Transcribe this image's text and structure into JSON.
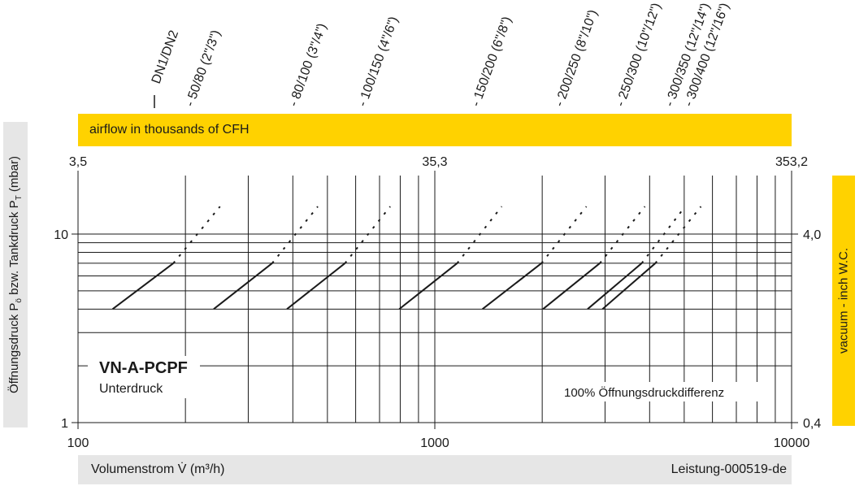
{
  "colors": {
    "accent_yellow": "#ffd200",
    "band_grey": "#e6e6e6",
    "grid": "#1a1a1a"
  },
  "chart_data": {
    "type": "line",
    "title": "VN-A-PCPF",
    "subtitle": "Unterdruck",
    "annotation": "100% Öffnungsdruckdifferenz",
    "xlabel": "Volumenstrom V̇ (m³/h)",
    "ylabel": "Öffnungsdruck Pö bzw. Tankdruck PT (mbar)",
    "ylabel_main": "Öffnungsdruck P",
    "ylabel_sub1": "ö",
    "ylabel_mid": " bzw. Tankdruck P",
    "ylabel_sub2": "T",
    "ylabel_unit": " (mbar)",
    "footer_code": "Leistung-000519-de",
    "secondary_x_label": "airflow in thousands of CFH",
    "secondary_y_label": "vacuum  - inch W.C.",
    "x_scale": "log",
    "y_scale": "log",
    "xlim": [
      100,
      10000
    ],
    "ylim": [
      1,
      20
    ],
    "x_ticks": [
      "100",
      "1000",
      "10000"
    ],
    "x_tick_values": [
      100,
      1000,
      10000
    ],
    "y_ticks": [
      "1",
      "10"
    ],
    "y_tick_values": [
      1,
      10
    ],
    "top_ticks": [
      "3,5",
      "35,3",
      "353,2"
    ],
    "top_tick_values": [
      100,
      1000,
      10000
    ],
    "right_ticks": [
      "0,4",
      "4,0"
    ],
    "right_tick_values": [
      1,
      10
    ],
    "grid": true,
    "dn_sizes": [
      "DN1/DN2",
      "50/80 (2\"/3\")",
      "80/100 (3\"/4\")",
      "100/150 (4\"/6\")",
      "150/200 (6\"/8\")",
      "200/250 (8\"/10\")",
      "250/300 (10\"/12\")",
      "300/350 (12\"/14\")",
      "300/400 (12\"/16\")"
    ],
    "series": [
      {
        "name": "50/80 (2\"/3\")",
        "x_start": 125,
        "y_start": 4,
        "x_end": 185,
        "y_end": 7,
        "x_dash_end": 250,
        "y_dash_end": 14,
        "label_x": 210
      },
      {
        "name": "80/100 (3\"/4\")",
        "x_start": 240,
        "y_start": 4,
        "x_end": 350,
        "y_end": 7,
        "x_dash_end": 470,
        "y_dash_end": 14,
        "label_x": 410
      },
      {
        "name": "100/150 (4\"/6\")",
        "x_start": 385,
        "y_start": 4,
        "x_end": 560,
        "y_end": 7,
        "x_dash_end": 750,
        "y_dash_end": 14,
        "label_x": 640
      },
      {
        "name": "150/200 (6\"/8\")",
        "x_start": 795,
        "y_start": 4,
        "x_end": 1155,
        "y_end": 7,
        "x_dash_end": 1540,
        "y_dash_end": 14,
        "label_x": 1330
      },
      {
        "name": "200/250 (8\"/10\")",
        "x_start": 1360,
        "y_start": 4,
        "x_end": 1990,
        "y_end": 7,
        "x_dash_end": 2660,
        "y_dash_end": 14,
        "label_x": 2280
      },
      {
        "name": "250/300 (10\"/12\")",
        "x_start": 2010,
        "y_start": 4,
        "x_end": 2900,
        "y_end": 7,
        "x_dash_end": 3880,
        "y_dash_end": 14,
        "label_x": 3380
      },
      {
        "name": "300/350 (12\"/14\")",
        "x_start": 2680,
        "y_start": 4,
        "x_end": 3800,
        "y_end": 7,
        "x_dash_end": 5030,
        "y_dash_end": 14,
        "label_x": 4640
      },
      {
        "name": "300/400 (12\"/16\")",
        "x_start": 2950,
        "y_start": 4,
        "x_end": 4150,
        "y_end": 7,
        "x_dash_end": 5570,
        "y_dash_end": 14,
        "label_x": 5250
      }
    ]
  }
}
